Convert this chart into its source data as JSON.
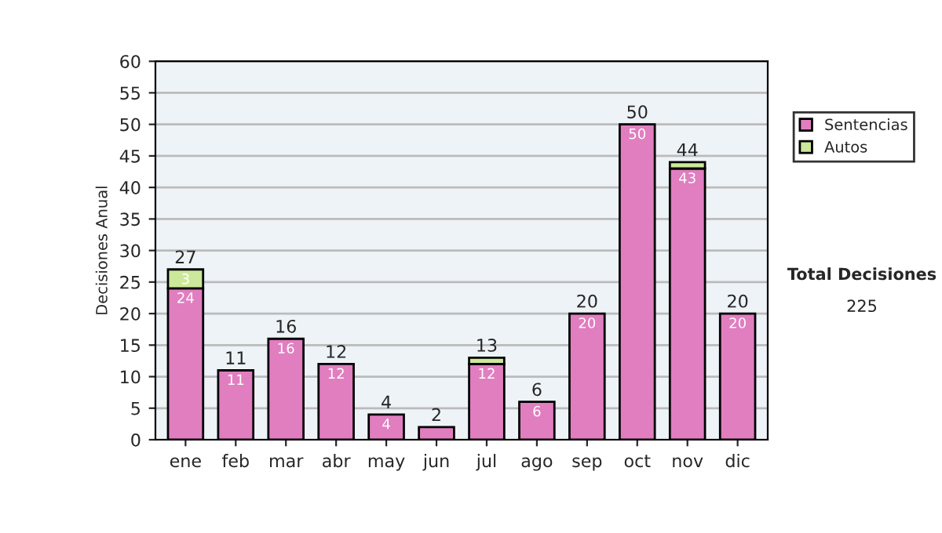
{
  "chart_data": {
    "type": "bar",
    "ylabel": "Decisiones Anual",
    "categories": [
      "ene",
      "feb",
      "mar",
      "abr",
      "may",
      "jun",
      "jul",
      "ago",
      "sep",
      "oct",
      "nov",
      "dic"
    ],
    "stacked": true,
    "series": [
      {
        "name": "Sentencias",
        "color": "#e07ec0",
        "values": [
          24,
          11,
          16,
          12,
          4,
          2,
          12,
          6,
          20,
          50,
          43,
          20
        ],
        "value_labels": [
          "24",
          "11",
          "16",
          "12",
          "4",
          null,
          "12",
          "6",
          "20",
          "50",
          "43",
          "20"
        ]
      },
      {
        "name": "Autos",
        "color": "#cce89a",
        "values": [
          3,
          0,
          0,
          0,
          0,
          0,
          1,
          0,
          0,
          0,
          1,
          0
        ],
        "value_labels": [
          "3",
          null,
          null,
          null,
          null,
          null,
          null,
          null,
          null,
          null,
          null,
          null
        ]
      }
    ],
    "totals": [
      "27",
      "11",
      "16",
      "12",
      "4",
      "2",
      "13",
      "6",
      "20",
      "50",
      "44",
      "20"
    ],
    "ylim": [
      0,
      60
    ],
    "yticks": [
      0,
      5,
      10,
      15,
      20,
      25,
      30,
      35,
      40,
      45,
      50,
      55,
      60
    ],
    "grid": "y",
    "legend": "right",
    "annotations": [
      "Total Decisiones",
      "225"
    ]
  }
}
